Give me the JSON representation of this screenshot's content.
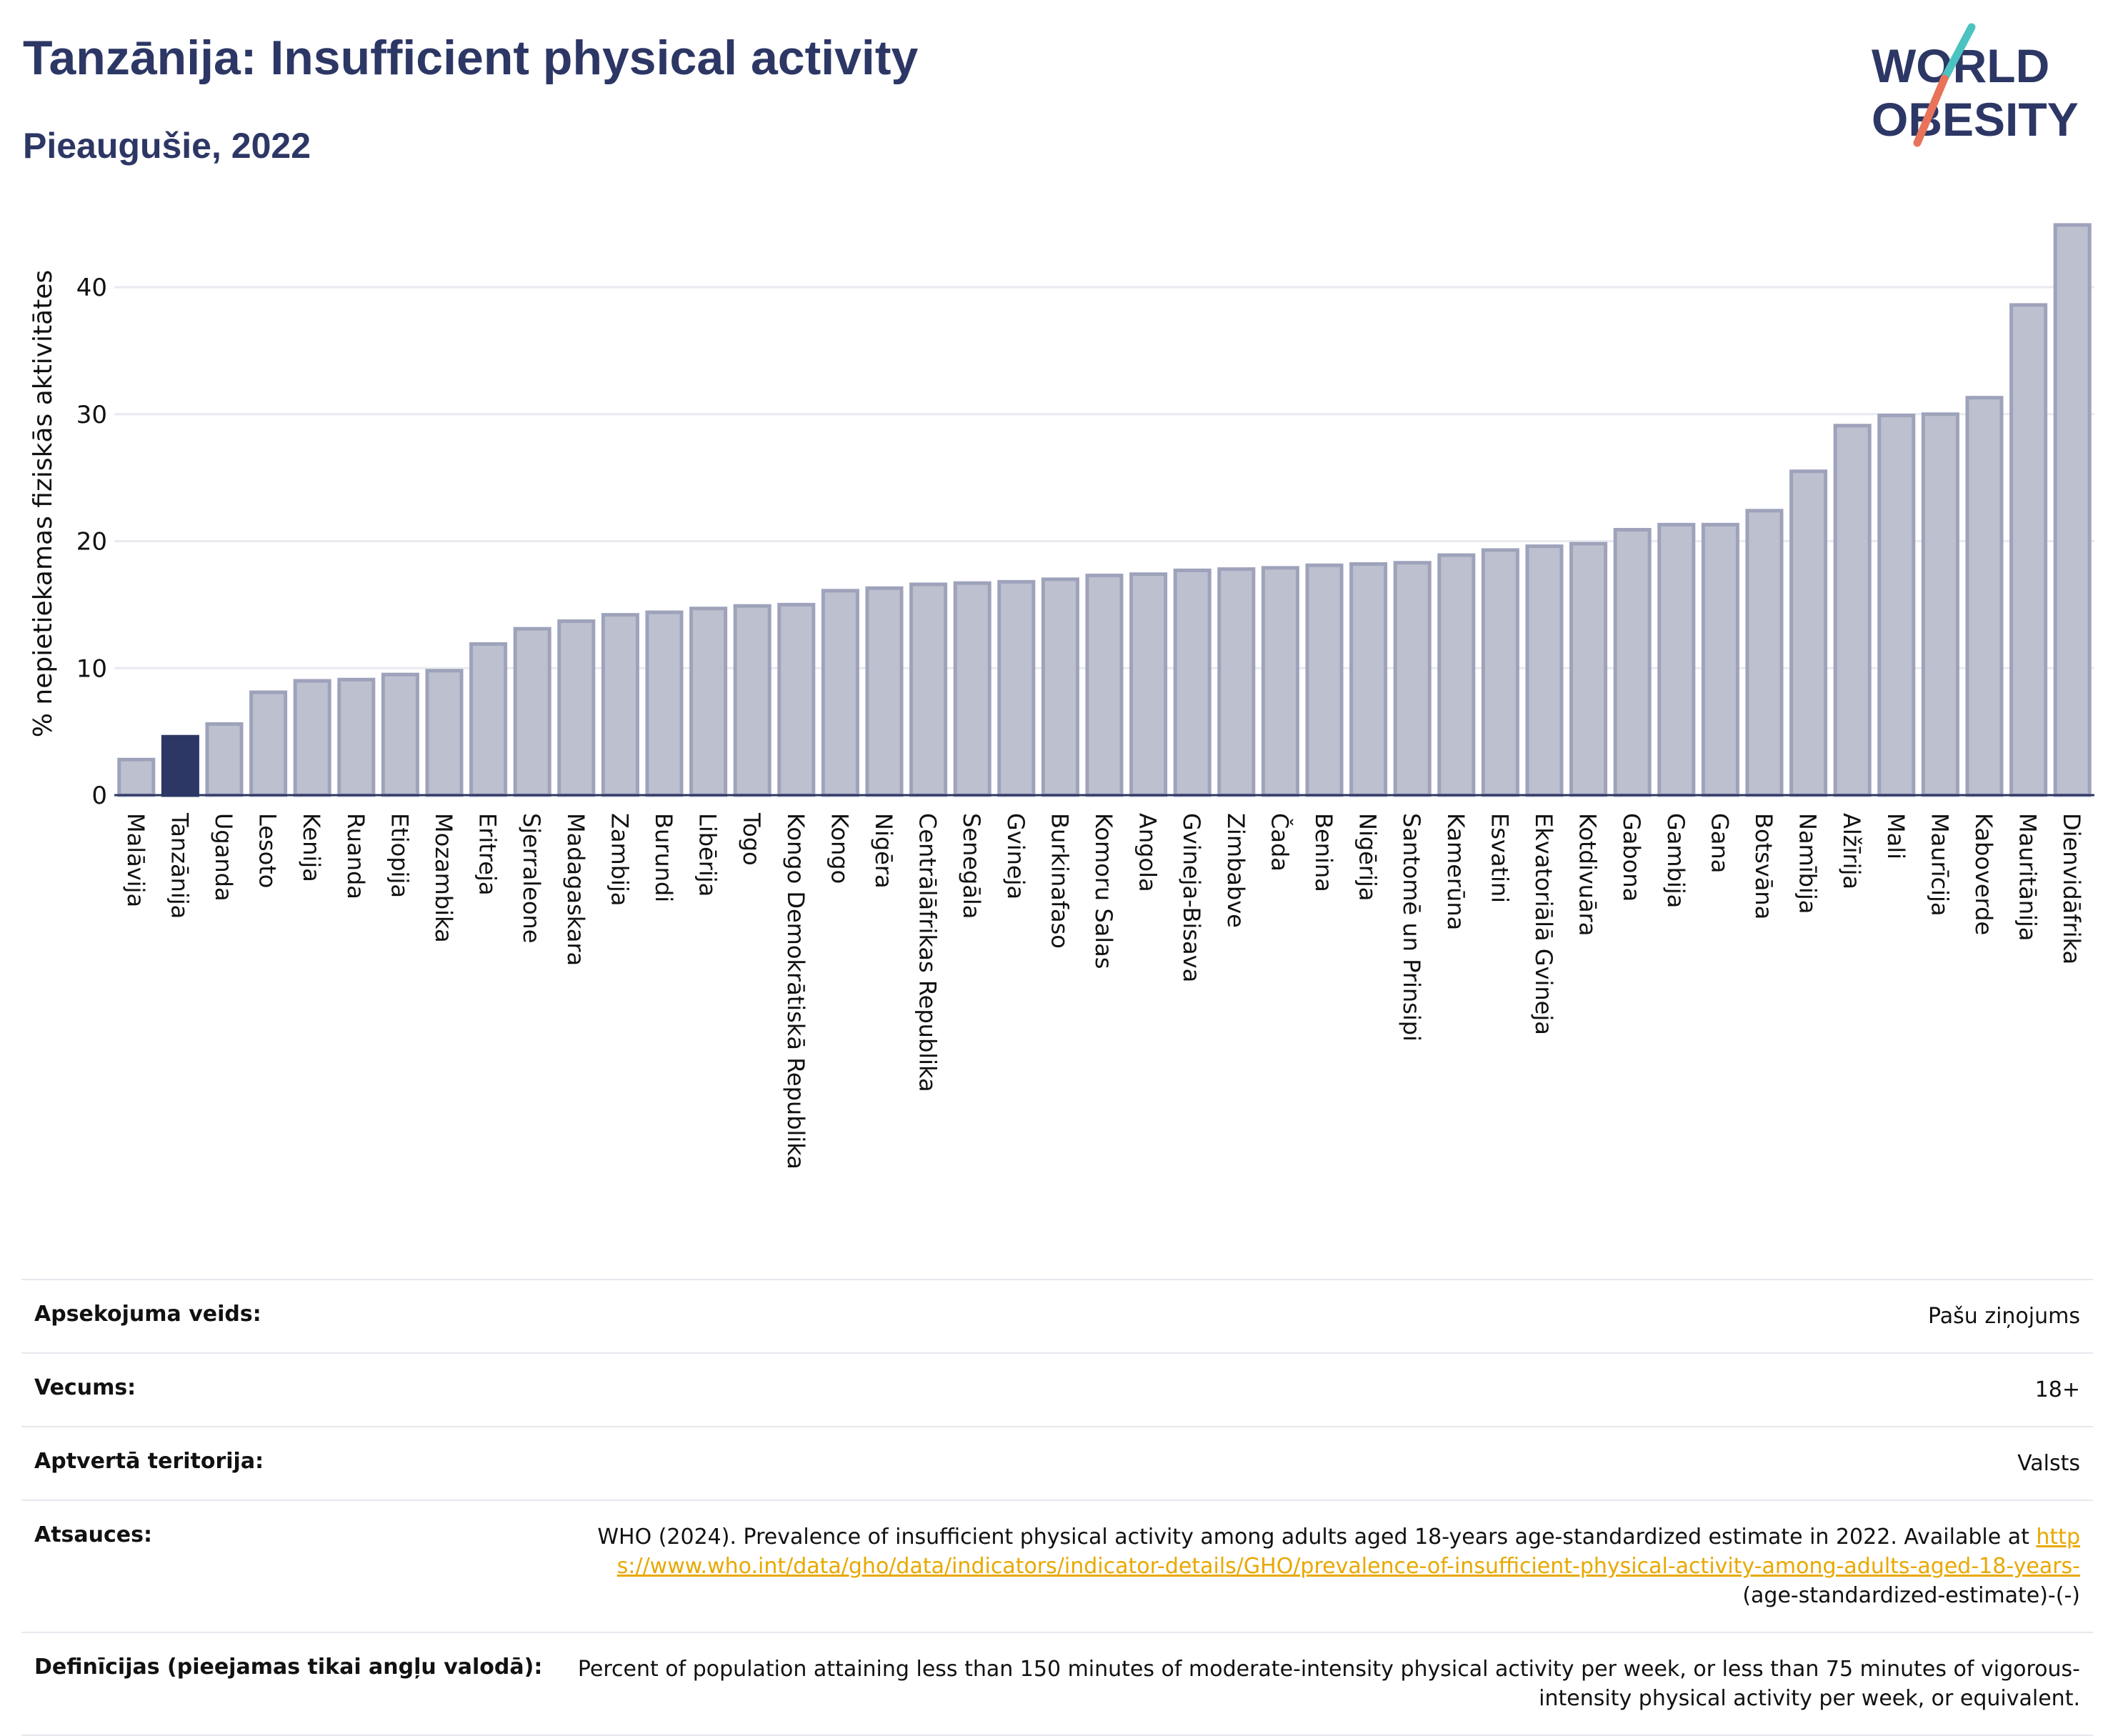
{
  "header": {
    "title": "Tanzānija: Insufficient physical activity",
    "subtitle": "Pieaugušie, 2022"
  },
  "logo": {
    "line1": "WORLD",
    "line2": "OBESITY",
    "brand_color": "#2d3765",
    "accent_teal": "#4cc3c0",
    "accent_coral": "#e8735a"
  },
  "colors": {
    "bar_default": "#bcc0cf",
    "bar_default_border": "#9ea3bb",
    "bar_highlight": "#2d3765",
    "link": "#e8a800"
  },
  "chart_data": {
    "type": "bar",
    "ylabel": "% nepietiekamas fiziskās aktivitātes",
    "ylim": [
      0,
      45
    ],
    "yticks": [
      0,
      10,
      20,
      30,
      40
    ],
    "grid": true,
    "highlight": "Tanzānija",
    "categories": [
      "Malāvija",
      "Tanzānija",
      "Uganda",
      "Lesoto",
      "Kenija",
      "Ruanda",
      "Etiopija",
      "Mozambika",
      "Eritreja",
      "Sjerraleone",
      "Madagaskara",
      "Zambija",
      "Burundi",
      "Libērija",
      "Togo",
      "Kongo Demokrātiskā Republika",
      "Kongo",
      "Nigēra",
      "Centrālāfrikas Republika",
      "Senegāla",
      "Gvineja",
      "Burkinafaso",
      "Komoru Salas",
      "Angola",
      "Gvineja-Bisava",
      "Zimbabve",
      "Čada",
      "Benina",
      "Nigērija",
      "Santomē un Prinsipi",
      "Kamerūna",
      "Esvatini",
      "Ekvatoriālā Gvineja",
      "Kotdivuāra",
      "Gabona",
      "Gambija",
      "Gana",
      "Botsvāna",
      "Namībija",
      "Alžīrija",
      "Mali",
      "Maurīcija",
      "Kaboverde",
      "Mauritānija",
      "Dienvidāfrika"
    ],
    "values": [
      2.8,
      4.6,
      5.6,
      8.1,
      9.0,
      9.1,
      9.5,
      9.8,
      11.9,
      13.1,
      13.7,
      14.2,
      14.4,
      14.7,
      14.9,
      15.0,
      16.1,
      16.3,
      16.6,
      16.7,
      16.8,
      17.0,
      17.3,
      17.4,
      17.7,
      17.8,
      17.9,
      18.1,
      18.2,
      18.3,
      18.9,
      19.3,
      19.6,
      19.8,
      20.9,
      21.3,
      21.3,
      22.4,
      25.5,
      29.1,
      29.9,
      30.0,
      31.3,
      38.6,
      44.9
    ]
  },
  "info": {
    "survey_type_label": "Apsekojuma veids:",
    "survey_type_value": "Pašu ziņojums",
    "age_label": "Vecums:",
    "age_value": "18+",
    "coverage_label": "Aptvertā teritorija:",
    "coverage_value": "Valsts",
    "references_label": "Atsauces:",
    "references_text": "WHO (2024). Prevalence of insufficient physical activity among adults aged 18-years age-standardized estimate in 2022. Available at ",
    "references_link": "https://www.who.int/data/gho/data/indicators/indicator-details/GHO/prevalence-of-insufficient-physical-activity-among-adults-aged-18-years-",
    "references_suffix": "(age-standardized-estimate)-(-)",
    "definitions_label": "Definīcijas (pieejamas tikai angļu valodā):",
    "definitions_value": "Percent of population attaining less than 150 minutes of moderate-intensity physical activity per week, or less than 75 minutes of vigorous-intensity physical activity per week, or equivalent."
  }
}
